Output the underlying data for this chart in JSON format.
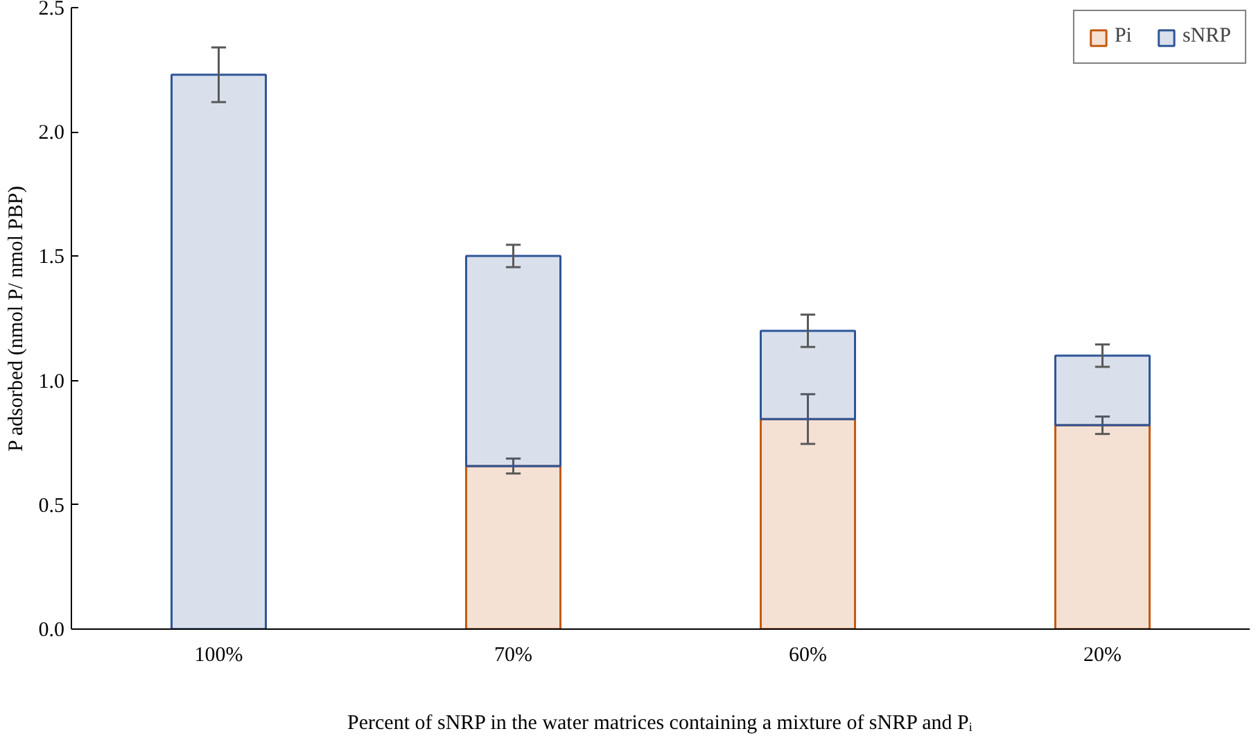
{
  "chart_data": {
    "type": "bar",
    "stacked": true,
    "xlabel": "Percent of sNRP in the water matrices containing a mixture of sNRP and Pᵢ",
    "ylabel": "P adsorbed (nmol P/ nmol PBP)",
    "categories": [
      "100%",
      "70%",
      "60%",
      "20%"
    ],
    "series": [
      {
        "name": "Pi",
        "color": "#c55a11",
        "values": [
          null,
          0.656,
          0.845,
          0.82
        ],
        "errors": [
          null,
          0.03,
          0.1,
          0.035
        ]
      },
      {
        "name": "sNRP",
        "color": "#2f5597",
        "values": [
          2.23,
          0.845,
          0.355,
          0.28
        ],
        "errors": [
          0.11,
          0.045,
          0.065,
          0.045
        ]
      }
    ],
    "ylim": [
      0,
      2.5
    ],
    "yticks": [
      {
        "value": 0,
        "label": "0.0"
      },
      {
        "value": 0.5,
        "label": "0.5"
      },
      {
        "value": 1,
        "label": "1.0"
      },
      {
        "value": 1.5,
        "label": "1.5"
      },
      {
        "value": 2,
        "label": "2.0"
      },
      {
        "value": 2.5,
        "label": "2.5"
      }
    ],
    "grid": false,
    "legend": "top right"
  }
}
